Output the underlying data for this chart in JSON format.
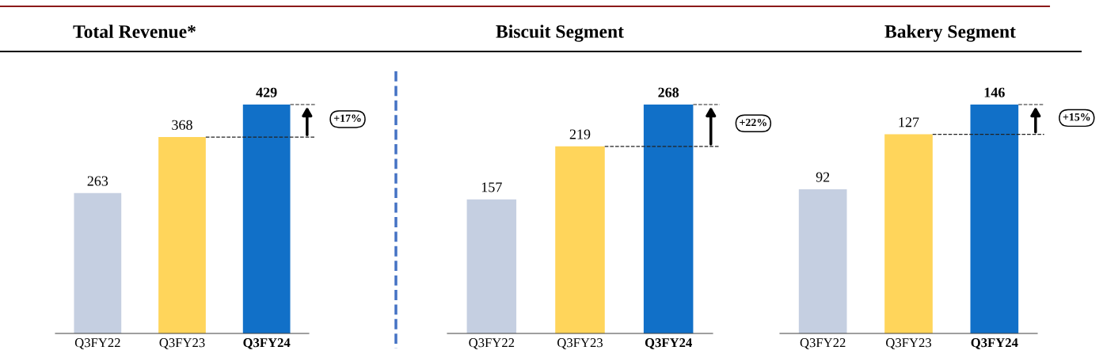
{
  "chart_data": [
    {
      "type": "bar",
      "title": "Total Revenue*",
      "categories": [
        "Q3FY22",
        "Q3FY23",
        "Q3FY24"
      ],
      "values": [
        263,
        368,
        429
      ],
      "colors": [
        "#c5cfe1",
        "#ffd55b",
        "#1170c8"
      ],
      "data_labels": true,
      "annotations": [
        "+17%"
      ]
    },
    {
      "type": "bar",
      "title": "Biscuit Segment",
      "categories": [
        "Q3FY22",
        "Q3FY23",
        "Q3FY24"
      ],
      "values": [
        157,
        219,
        268
      ],
      "colors": [
        "#c5cfe1",
        "#ffd55b",
        "#1170c8"
      ],
      "data_labels": true,
      "annotations": [
        "+22%"
      ]
    },
    {
      "type": "bar",
      "title": "Bakery Segment",
      "categories": [
        "Q3FY22",
        "Q3FY23",
        "Q3FY24"
      ],
      "values": [
        92,
        127,
        146
      ],
      "colors": [
        "#c5cfe1",
        "#ffd55b",
        "#1170c8"
      ],
      "data_labels": true,
      "annotations": [
        "+15%"
      ]
    }
  ]
}
